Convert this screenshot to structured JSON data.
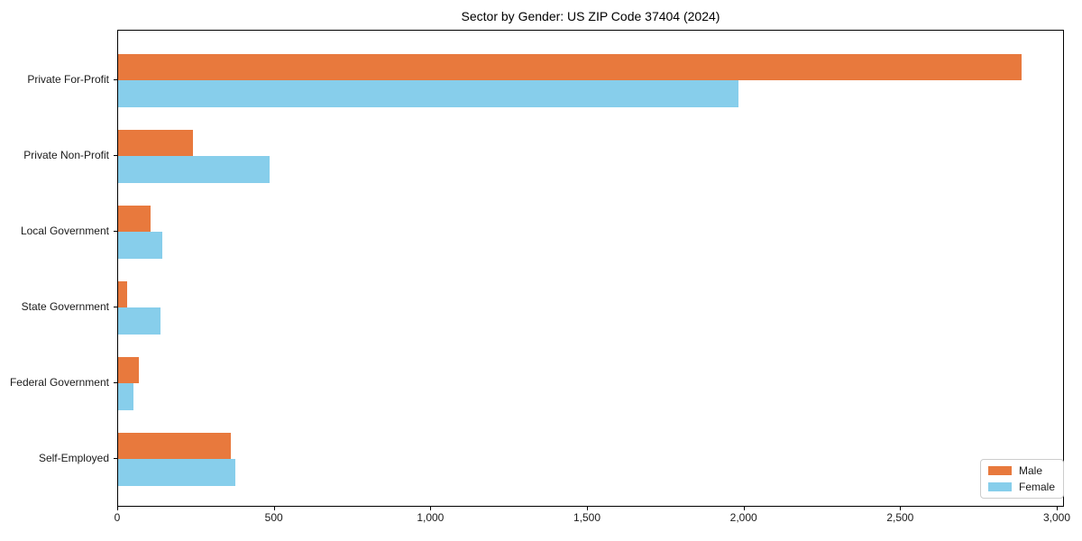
{
  "chart_data": {
    "type": "bar",
    "orientation": "horizontal",
    "title": "Sector by Gender: US ZIP Code 37404 (2024)",
    "categories": [
      "Private For-Profit",
      "Private Non-Profit",
      "Local Government",
      "State Government",
      "Federal Government",
      "Self-Employed"
    ],
    "series": [
      {
        "name": "Male",
        "color": "#e8793d",
        "values": [
          2885,
          240,
          105,
          30,
          65,
          360
        ]
      },
      {
        "name": "Female",
        "color": "#87ceeb",
        "values": [
          1980,
          485,
          140,
          135,
          50,
          375
        ]
      }
    ],
    "xlabel": "",
    "ylabel": "",
    "xlim": [
      0,
      3000
    ],
    "x_ticks": [
      0,
      500,
      1000,
      1500,
      2000,
      2500,
      3000
    ],
    "x_tick_labels": [
      "0",
      "500",
      "1,000",
      "1,500",
      "2,000",
      "2,500",
      "3,000"
    ],
    "grid": false,
    "legend_position": "lower right",
    "axis_color": "#000000",
    "background_color": "#ffffff"
  }
}
